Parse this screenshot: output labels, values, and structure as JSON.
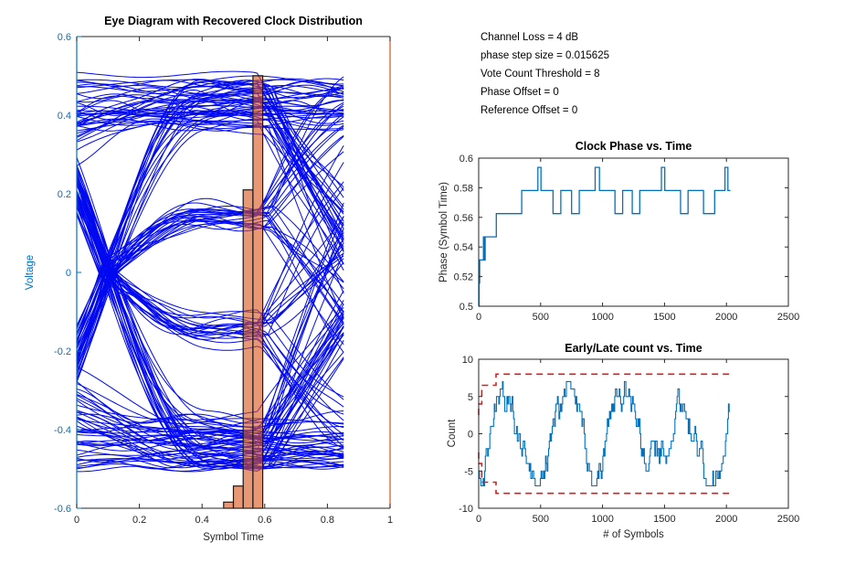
{
  "figure": {
    "background": "#ffffff"
  },
  "annotations": {
    "lines": [
      "Channel Loss = 4 dB",
      "phase step size = 0.015625",
      "Vote Count Threshold = 8",
      "Phase Offset = 0",
      "Reference Offset = 0"
    ]
  },
  "colors": {
    "matlab_blue": "#0072BD",
    "matlab_orange": "#D95319",
    "trace_blue": "#0009F0",
    "axis_dark": "#262626",
    "threshold_red": "#E21A1A",
    "hist_face": "rgba(217,83,25,0.6)",
    "hist_edge": "#1a1a1a"
  },
  "chart_data": [
    {
      "type": "line",
      "name": "eye_diagram",
      "title": "Eye Diagram with Recovered Clock Distribution",
      "xlabel": "Symbol Time",
      "ylabel": "Voltage",
      "xlim": [
        0,
        1
      ],
      "ylim": [
        -0.6,
        0.6
      ],
      "xticks": [
        0,
        0.2,
        0.4,
        0.6,
        0.8,
        1
      ],
      "xtick_labels": [
        "0",
        "0.2",
        "0.4",
        "0.6",
        "0.8",
        "1"
      ],
      "yticks": [
        0.6,
        0.4,
        0.2,
        0,
        -0.2,
        -0.4,
        -0.6
      ],
      "ytick_labels": [
        "0.6",
        "0.4",
        "0.2",
        "0",
        "-0.2",
        "-0.4",
        "-0.6"
      ],
      "grid": false,
      "axis_colors": {
        "left": "#0072BD",
        "right": "#D95319",
        "top": "#262626",
        "bottom": "#262626"
      },
      "traces": {
        "count": 170,
        "seed": 987654,
        "x_end": 0.862,
        "sample_step": 0.012,
        "crossing_time": 0.1,
        "second_boundary": 0.6,
        "amp_min": 0.37,
        "amp_max": 0.5,
        "slow_path_probability": 0.45,
        "color": "#0009F0"
      },
      "clock_histogram": {
        "comment": "recovered clock phase distribution, counts on unlabeled right (orange) axis",
        "bin_edges": [
          0.46875,
          0.5,
          0.53125,
          0.5625,
          0.59375
        ],
        "height_fractions": [
          0.013,
          0.047,
          0.675,
          0.917
        ],
        "face_color": "rgba(217,83,25,0.6)",
        "edge_color": "#1a1a1a"
      }
    },
    {
      "type": "line",
      "name": "clock_phase",
      "title": "Clock Phase vs. Time",
      "xlabel": "",
      "ylabel": "Phase (Symbol Time)",
      "xlim": [
        0,
        2500
      ],
      "ylim": [
        0.5,
        0.6
      ],
      "xticks": [
        0,
        500,
        1000,
        1500,
        2000,
        2500
      ],
      "xtick_labels": [
        "0",
        "500",
        "1000",
        "1500",
        "2000",
        "2500"
      ],
      "yticks": [
        0.5,
        0.52,
        0.54,
        0.56,
        0.58,
        0.6
      ],
      "ytick_labels": [
        "0.5",
        "0.52",
        "0.54",
        "0.56",
        "0.58",
        "0.6"
      ],
      "grid": false,
      "line_color": "#0072BD",
      "step_x": [
        0,
        3,
        8,
        38,
        43,
        52,
        142,
        347,
        478,
        503,
        600,
        663,
        750,
        812,
        940,
        975,
        1100,
        1162,
        1240,
        1300,
        1475,
        1502,
        1630,
        1690,
        1815,
        1905,
        1988,
        2012
      ],
      "step_phase": [
        0.5,
        0.515625,
        0.53125,
        0.546875,
        0.53125,
        0.546875,
        0.5625,
        0.578125,
        0.59375,
        0.578125,
        0.5625,
        0.578125,
        0.5625,
        0.578125,
        0.59375,
        0.578125,
        0.5625,
        0.578125,
        0.5625,
        0.578125,
        0.59375,
        0.578125,
        0.5625,
        0.578125,
        0.5625,
        0.578125,
        0.59375,
        0.578125
      ],
      "x_end": 2032
    },
    {
      "type": "line",
      "name": "early_late_count",
      "title": "Early/Late count vs. Time",
      "xlabel": "# of Symbols",
      "ylabel": "Count",
      "xlim": [
        0,
        2500
      ],
      "ylim": [
        -10,
        10
      ],
      "xticks": [
        0,
        500,
        1000,
        1500,
        2000,
        2500
      ],
      "xtick_labels": [
        "0",
        "500",
        "1000",
        "1500",
        "2000",
        "2500"
      ],
      "yticks": [
        -10,
        -5,
        0,
        5,
        10
      ],
      "ytick_labels": [
        "-10",
        "-5",
        "0",
        "5",
        "10"
      ],
      "grid": false,
      "count_signal": {
        "comment": "noisy integer early/late vote count, quasi-period ~470 symbols, clamped to +/-7",
        "seed": 20240601,
        "x_start": 0,
        "x_end": 2028,
        "step": 6,
        "period": 470,
        "phase_shift": 115,
        "amplitude": 4.3,
        "noise": 1.8,
        "clamp": 7,
        "color": "#0072BD"
      },
      "threshold_envelope": {
        "upper_x": [
          0,
          0,
          25,
          25,
          140,
          140,
          2035
        ],
        "upper_y": [
          2.5,
          4,
          4,
          6.5,
          6.5,
          8,
          8
        ],
        "lower_mirrored": true,
        "color": "#E21A1A",
        "style": "dashed"
      }
    }
  ]
}
